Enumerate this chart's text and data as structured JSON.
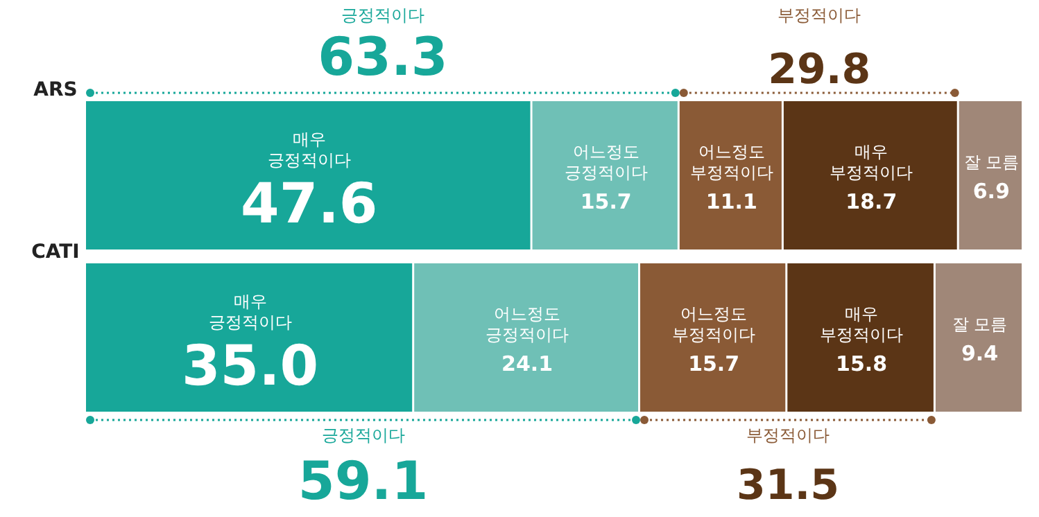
{
  "chart_data": {
    "type": "bar",
    "orientation": "horizontal",
    "stacked": true,
    "tick_labels": "y",
    "xlim": [
      0,
      100
    ],
    "categories": [
      "ARS",
      "CATI"
    ],
    "series": [
      {
        "name": "매우 긍정적이다",
        "color": "#17a799",
        "values": [
          47.6,
          35.0
        ],
        "value_labels": [
          "47.6",
          "35.0"
        ]
      },
      {
        "name": "어느정도 긍정적이다",
        "color": "#6fc0b6",
        "values": [
          15.7,
          24.1
        ],
        "value_labels": [
          "15.7",
          "24.1"
        ]
      },
      {
        "name": "어느정도 부정적이다",
        "color": "#8a5a36",
        "values": [
          11.1,
          15.7
        ],
        "value_labels": [
          "11.1",
          "15.7"
        ]
      },
      {
        "name": "매우 부정적이다",
        "color": "#5b3516",
        "values": [
          18.7,
          15.8
        ],
        "value_labels": [
          "18.7",
          "15.8"
        ]
      },
      {
        "name": "잘 모름",
        "color": "#a08778",
        "values": [
          6.9,
          9.4
        ],
        "value_labels": [
          "6.9",
          "9.4"
        ]
      }
    ],
    "annotations": [
      "긍정적이다",
      "63.3",
      "부정적이다",
      "29.8",
      "긍정적이다",
      "59.1",
      "부정적이다",
      "31.5"
    ]
  }
}
